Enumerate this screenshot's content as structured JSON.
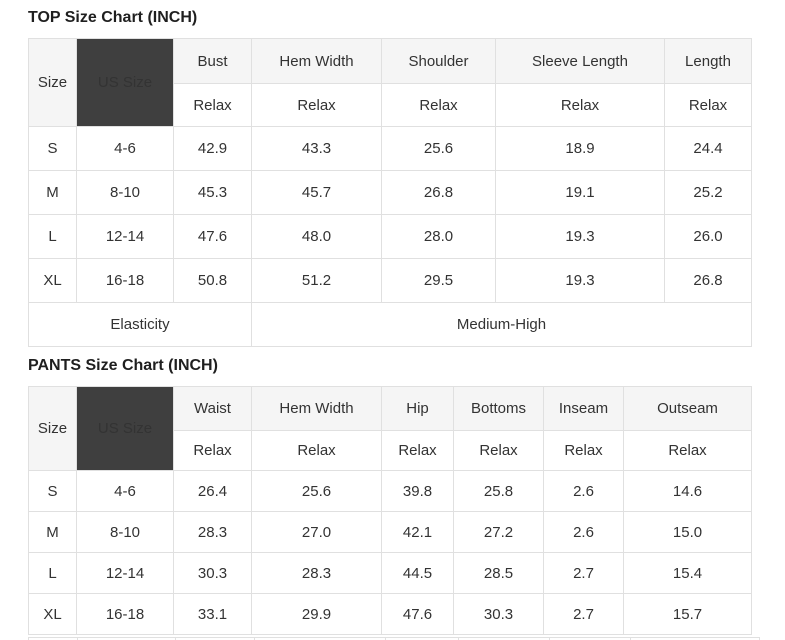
{
  "colors": {
    "page_background": "#ffffff",
    "table_border": "#e0e0e0",
    "header_cell_background": "#f5f5f5",
    "us_size_cell_background": "#3f3f3f",
    "us_size_cell_text": "#ffffff",
    "body_text": "#333333",
    "title_text": "#1f1f1f"
  },
  "top_chart": {
    "title": "TOP Size Chart (INCH)",
    "corner": {
      "size_label": "Size",
      "us_size_label": "US Size"
    },
    "measure_columns": [
      {
        "label": "Bust",
        "fit": "Relax"
      },
      {
        "label": "Hem Width",
        "fit": "Relax"
      },
      {
        "label": "Shoulder",
        "fit": "Relax"
      },
      {
        "label": "Sleeve Length",
        "fit": "Relax"
      },
      {
        "label": "Length",
        "fit": "Relax"
      }
    ],
    "rows": [
      {
        "size": "S",
        "us_size": "4-6",
        "values": [
          "42.9",
          "43.3",
          "25.6",
          "18.9",
          "24.4"
        ]
      },
      {
        "size": "M",
        "us_size": "8-10",
        "values": [
          "45.3",
          "45.7",
          "26.8",
          "19.1",
          "25.2"
        ]
      },
      {
        "size": "L",
        "us_size": "12-14",
        "values": [
          "47.6",
          "48.0",
          "28.0",
          "19.3",
          "26.0"
        ]
      },
      {
        "size": "XL",
        "us_size": "16-18",
        "values": [
          "50.8",
          "51.2",
          "29.5",
          "19.3",
          "26.8"
        ]
      }
    ],
    "footer": {
      "label": "Elasticity",
      "value": "Medium-High"
    }
  },
  "pants_chart": {
    "title": "PANTS Size Chart (INCH)",
    "corner": {
      "size_label": "Size",
      "us_size_label": "US Size"
    },
    "measure_columns": [
      {
        "label": "Waist",
        "fit": "Relax"
      },
      {
        "label": "Hem Width",
        "fit": "Relax"
      },
      {
        "label": "Hip",
        "fit": "Relax"
      },
      {
        "label": "Bottoms",
        "fit": "Relax"
      },
      {
        "label": "Inseam",
        "fit": "Relax"
      },
      {
        "label": "Outseam",
        "fit": "Relax"
      }
    ],
    "rows": [
      {
        "size": "S",
        "us_size": "4-6",
        "values": [
          "26.4",
          "25.6",
          "39.8",
          "25.8",
          "2.6",
          "14.6"
        ]
      },
      {
        "size": "M",
        "us_size": "8-10",
        "values": [
          "28.3",
          "27.0",
          "42.1",
          "27.2",
          "2.6",
          "15.0"
        ]
      },
      {
        "size": "L",
        "us_size": "12-14",
        "values": [
          "30.3",
          "28.3",
          "44.5",
          "28.5",
          "2.7",
          "15.4"
        ]
      },
      {
        "size": "XL",
        "us_size": "16-18",
        "values": [
          "33.1",
          "29.9",
          "47.6",
          "30.3",
          "2.7",
          "15.7"
        ]
      }
    ]
  }
}
